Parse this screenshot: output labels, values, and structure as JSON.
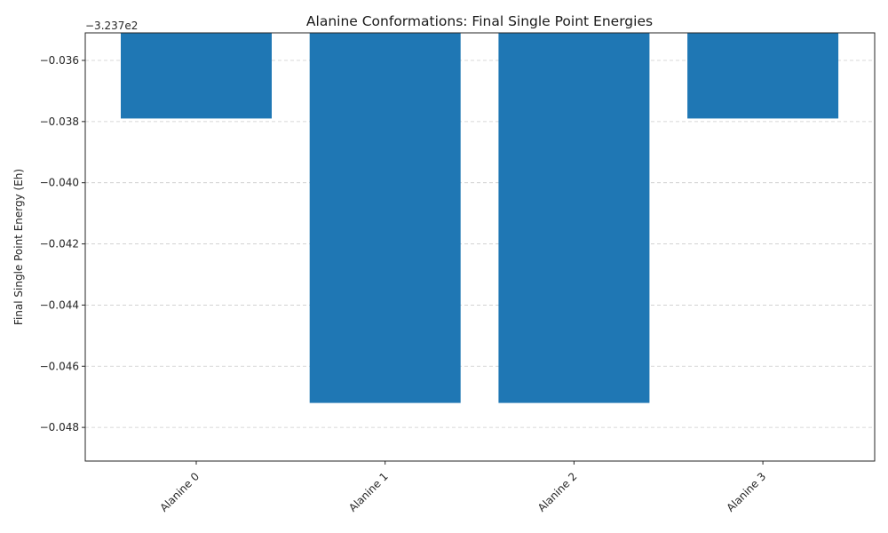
{
  "chart_data": {
    "type": "bar",
    "title": "Alanine Conformations: Final Single Point Energies",
    "ylabel": "Final Single Point Energy (Eh)",
    "xlabel": "",
    "offset_text": "−3.237e2",
    "offset_value": -323.7,
    "categories": [
      "Alanine 0",
      "Alanine 1",
      "Alanine 2",
      "Alanine 3"
    ],
    "values": [
      -323.7379,
      -323.7472,
      -323.7472,
      -323.7379
    ],
    "ylim": [
      -0.0491,
      -0.0351
    ],
    "yticks": [
      -0.036,
      -0.038,
      -0.04,
      -0.042,
      -0.044,
      -0.046,
      -0.048
    ],
    "ytick_labels": [
      "−0.036",
      "−0.038",
      "−0.040",
      "−0.042",
      "−0.044",
      "−0.046",
      "−0.048"
    ],
    "grid": "y-dashed",
    "bar_color": "#1f77b4"
  }
}
